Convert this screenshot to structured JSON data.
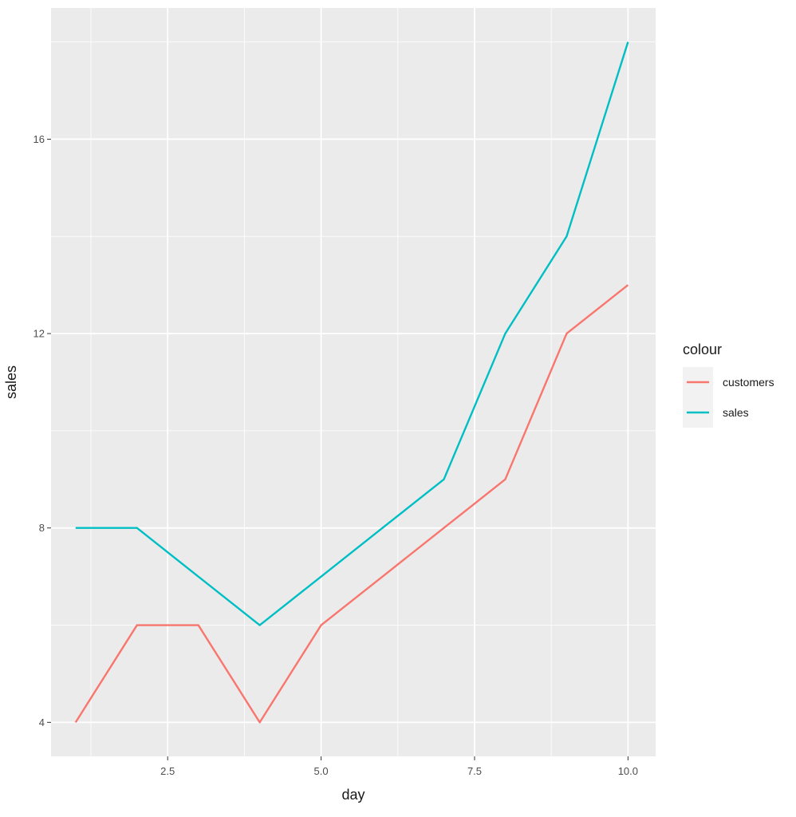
{
  "chart_data": {
    "type": "line",
    "xlabel": "day",
    "ylabel": "sales",
    "xlim": [
      0.6,
      10.45
    ],
    "ylim": [
      3.3,
      18.7
    ],
    "x_ticks": [
      2.5,
      5.0,
      7.5,
      10.0
    ],
    "x_tick_labels": [
      "2.5",
      "5.0",
      "7.5",
      "10.0"
    ],
    "x_minor_ticks": [
      1.25,
      3.75,
      6.25,
      8.75
    ],
    "y_ticks": [
      4,
      8,
      12,
      16
    ],
    "y_tick_labels": [
      "4",
      "8",
      "12",
      "16"
    ],
    "y_minor_ticks": [
      6,
      10,
      14,
      18
    ],
    "grid": true,
    "legend": {
      "title": "colour",
      "position": "right"
    },
    "x": [
      1,
      2,
      3,
      4,
      5,
      6,
      7,
      8,
      9,
      10
    ],
    "series": [
      {
        "name": "customers",
        "color": "#F8766D",
        "values": [
          4,
          6,
          6,
          4,
          6,
          7,
          8,
          9,
          12,
          13
        ]
      },
      {
        "name": "sales",
        "color": "#00BFC4",
        "values": [
          8,
          8,
          7,
          6,
          7,
          8,
          9,
          12,
          14,
          18
        ]
      }
    ],
    "panel_background": "#EBEBEB",
    "gridline_color": "#FFFFFF"
  }
}
